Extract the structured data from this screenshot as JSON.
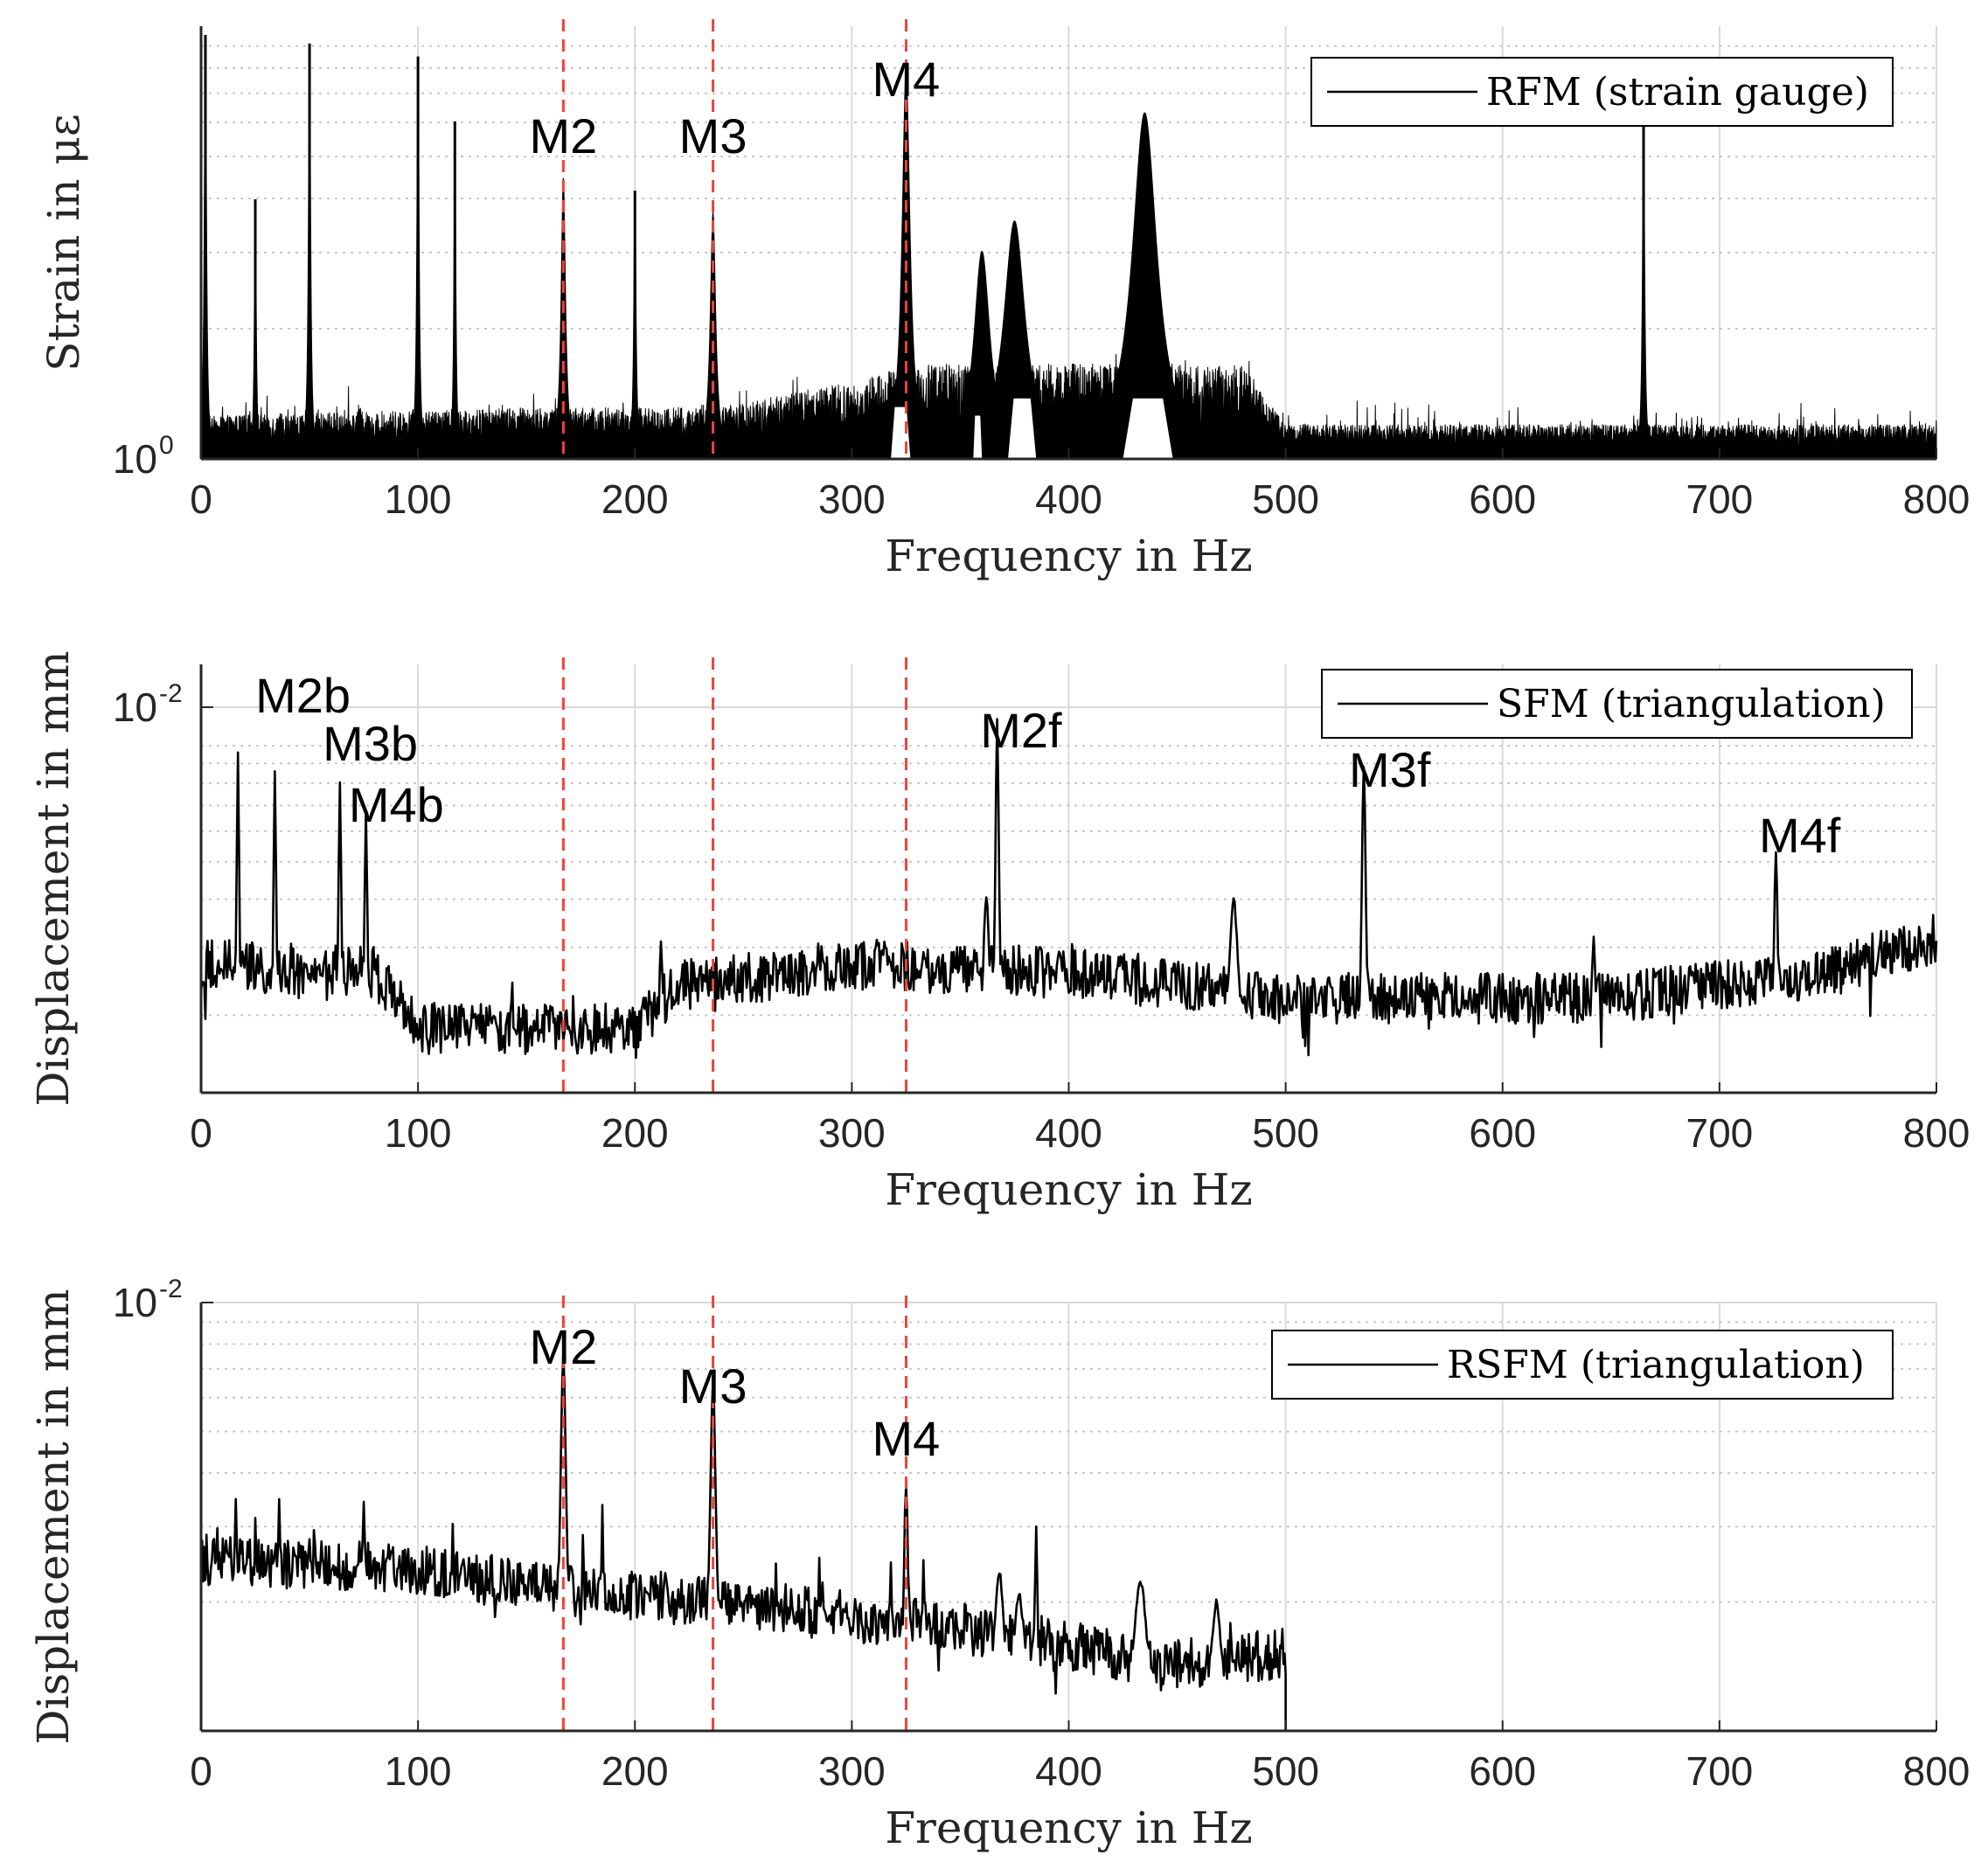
{
  "chart_data": [
    {
      "type": "line",
      "yscale": "log",
      "xlabel": "Frequency in Hz",
      "ylabel": "Strain in με",
      "xlim": [
        0,
        800
      ],
      "xticks": [
        "0",
        "100",
        "200",
        "300",
        "400",
        "500",
        "600",
        "700",
        "800"
      ],
      "ytick_base": "10",
      "ytick_exp": "0",
      "legend": {
        "entry": "RFM (strain gauge)",
        "placement": "top-right"
      },
      "colors": {
        "line": "#000000",
        "ref_lines": "#e8453c",
        "grid": "#d9d9d9"
      },
      "ref_lines_x": [
        167,
        236,
        325
      ],
      "annotations": [
        {
          "text": "M2",
          "x": 167
        },
        {
          "text": "M3",
          "x": 236
        },
        {
          "text": "M4",
          "x": 325
        }
      ],
      "series": [
        {
          "name": "RFM (strain gauge)",
          "kind": "noise_peaks",
          "floor_db": [
            [
              0,
              0.1
            ],
            [
              150,
              0.12
            ],
            [
              240,
              0.12
            ],
            [
              300,
              0.18
            ],
            [
              330,
              0.22
            ],
            [
              480,
              0.22
            ],
            [
              500,
              0.08
            ],
            [
              800,
              0.08
            ]
          ],
          "peaks": [
            {
              "f": 2,
              "v": 0.98,
              "w": 0.6
            },
            {
              "f": 25,
              "v": 0.6,
              "w": 0.5
            },
            {
              "f": 50,
              "v": 0.96,
              "w": 0.6
            },
            {
              "f": 100,
              "v": 0.93,
              "w": 0.6
            },
            {
              "f": 117,
              "v": 0.78,
              "w": 0.5
            },
            {
              "f": 167,
              "v": 0.65,
              "w": 1.2
            },
            {
              "f": 200,
              "v": 0.62,
              "w": 0.6
            },
            {
              "f": 236,
              "v": 0.57,
              "w": 1.5
            },
            {
              "f": 325,
              "v": 0.9,
              "w": 2.2
            },
            {
              "f": 360,
              "v": 0.48,
              "w": 4.5
            },
            {
              "f": 375,
              "v": 0.55,
              "w": 6
            },
            {
              "f": 402,
              "v": 0.22,
              "w": 0.6
            },
            {
              "f": 435,
              "v": 0.8,
              "w": 7
            },
            {
              "f": 665,
              "v": 0.78,
              "w": 0.6
            }
          ]
        }
      ]
    },
    {
      "type": "line",
      "yscale": "log",
      "xlabel": "Frequency in Hz",
      "ylabel": "Displacement in mm",
      "xlim": [
        0,
        800
      ],
      "xticks": [
        "0",
        "100",
        "200",
        "300",
        "400",
        "500",
        "600",
        "700",
        "800"
      ],
      "ytick_base": "10",
      "ytick_exp": "-2",
      "legend": {
        "entry": "SFM (triangulation)",
        "placement": "top-right"
      },
      "colors": {
        "line": "#000000",
        "ref_lines": "#e8453c",
        "grid": "#d9d9d9"
      },
      "ref_lines_x": [
        167,
        236,
        325
      ],
      "annotations": [
        {
          "text": "M2b",
          "x": 47
        },
        {
          "text": "M3b",
          "x": 78
        },
        {
          "text": "M4b",
          "x": 90
        },
        {
          "text": "M2f",
          "x": 378
        },
        {
          "text": "M3f",
          "x": 548
        },
        {
          "text": "M4f",
          "x": 737
        }
      ],
      "series": [
        {
          "name": "SFM (triangulation)",
          "kind": "line_peaks",
          "baseline": [
            [
              0,
              0.3
            ],
            [
              80,
              0.28
            ],
            [
              100,
              0.15
            ],
            [
              200,
              0.15
            ],
            [
              220,
              0.25
            ],
            [
              300,
              0.3
            ],
            [
              400,
              0.28
            ],
            [
              500,
              0.22
            ],
            [
              650,
              0.22
            ],
            [
              750,
              0.28
            ],
            [
              800,
              0.36
            ]
          ],
          "peaks": [
            {
              "f": 17,
              "v": 0.8,
              "w": 0.8
            },
            {
              "f": 34,
              "v": 0.76,
              "w": 0.8
            },
            {
              "f": 64,
              "v": 0.72,
              "w": 0.9
            },
            {
              "f": 76,
              "v": 0.66,
              "w": 0.9
            },
            {
              "f": 212,
              "v": 0.36,
              "w": 1.0
            },
            {
              "f": 362,
              "v": 0.46,
              "w": 2.0
            },
            {
              "f": 367,
              "v": 0.87,
              "w": 1.1
            },
            {
              "f": 476,
              "v": 0.45,
              "w": 3.0
            },
            {
              "f": 536,
              "v": 0.77,
              "w": 1.2
            },
            {
              "f": 642,
              "v": 0.36,
              "w": 1.2
            },
            {
              "f": 726,
              "v": 0.56,
              "w": 1.2
            }
          ]
        }
      ]
    },
    {
      "type": "line",
      "yscale": "log",
      "xlabel": "Frequency in Hz",
      "ylabel": "Displacement in mm",
      "xlim": [
        0,
        800
      ],
      "xticks": [
        "0",
        "100",
        "200",
        "300",
        "400",
        "500",
        "600",
        "700",
        "800"
      ],
      "ytick_base": "10",
      "ytick_exp": "-2",
      "legend": {
        "entry": "RSFM (triangulation)",
        "placement": "top-right"
      },
      "colors": {
        "line": "#000000",
        "ref_lines": "#e8453c",
        "grid": "#d9d9d9"
      },
      "ref_lines_x": [
        167,
        236,
        325
      ],
      "annotations": [
        {
          "text": "M2",
          "x": 167
        },
        {
          "text": "M3",
          "x": 236
        },
        {
          "text": "M4",
          "x": 325
        }
      ],
      "series": [
        {
          "name": "RSFM (triangulation)",
          "kind": "line_peaks",
          "xmax": 500,
          "baseline": [
            [
              0,
              0.4
            ],
            [
              100,
              0.38
            ],
            [
              160,
              0.33
            ],
            [
              240,
              0.3
            ],
            [
              330,
              0.25
            ],
            [
              400,
              0.2
            ],
            [
              440,
              0.15
            ],
            [
              500,
              0.18
            ]
          ],
          "peaks": [
            {
              "f": 16,
              "v": 0.54,
              "w": 0.8
            },
            {
              "f": 25,
              "v": 0.5,
              "w": 0.8
            },
            {
              "f": 36,
              "v": 0.55,
              "w": 1.0
            },
            {
              "f": 75,
              "v": 0.53,
              "w": 1.2
            },
            {
              "f": 116,
              "v": 0.48,
              "w": 0.8
            },
            {
              "f": 167,
              "v": 0.88,
              "w": 1.8
            },
            {
              "f": 176,
              "v": 0.46,
              "w": 0.8
            },
            {
              "f": 185,
              "v": 0.52,
              "w": 0.8
            },
            {
              "f": 236,
              "v": 0.82,
              "w": 1.8
            },
            {
              "f": 265,
              "v": 0.4,
              "w": 0.8
            },
            {
              "f": 285,
              "v": 0.4,
              "w": 0.8
            },
            {
              "f": 318,
              "v": 0.4,
              "w": 0.8
            },
            {
              "f": 325,
              "v": 0.58,
              "w": 1.3
            },
            {
              "f": 333,
              "v": 0.4,
              "w": 0.8
            },
            {
              "f": 368,
              "v": 0.37,
              "w": 3.0
            },
            {
              "f": 377,
              "v": 0.32,
              "w": 3.0
            },
            {
              "f": 385,
              "v": 0.48,
              "w": 0.8
            },
            {
              "f": 433,
              "v": 0.35,
              "w": 4.0
            },
            {
              "f": 468,
              "v": 0.3,
              "w": 3.0
            }
          ]
        }
      ]
    }
  ]
}
